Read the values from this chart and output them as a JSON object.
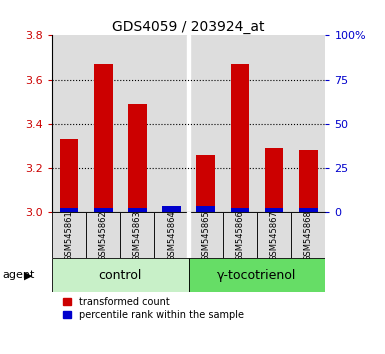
{
  "title": "GDS4059 / 203924_at",
  "samples": [
    "GSM545861",
    "GSM545862",
    "GSM545863",
    "GSM545864",
    "GSM545865",
    "GSM545866",
    "GSM545867",
    "GSM545868"
  ],
  "red_values": [
    3.33,
    3.67,
    3.49,
    3.0,
    3.26,
    3.67,
    3.29,
    3.28
  ],
  "blue_values": [
    0.022,
    0.022,
    0.022,
    0.028,
    0.028,
    0.022,
    0.022,
    0.022
  ],
  "ymin": 3.0,
  "ymax": 3.8,
  "yticks": [
    3.0,
    3.2,
    3.4,
    3.6,
    3.8
  ],
  "right_yticks": [
    0,
    25,
    50,
    75,
    100
  ],
  "right_ylabels": [
    "0",
    "25",
    "50",
    "75",
    "100%"
  ],
  "groups": [
    {
      "label": "control",
      "indices": [
        0,
        1,
        2,
        3
      ],
      "color": "#c8f0c8"
    },
    {
      "label": "γ-tocotrienol",
      "indices": [
        4,
        5,
        6,
        7
      ],
      "color": "#66dd66"
    }
  ],
  "group_row_label": "agent",
  "bar_color_red": "#cc0000",
  "bar_color_blue": "#0000cc",
  "bar_width": 0.55,
  "legend_red": "transformed count",
  "legend_blue": "percentile rank within the sample",
  "background_color": "#ffffff",
  "tick_bg_color": "#dddddd",
  "left_tick_color": "#cc0000",
  "right_tick_color": "#0000cc",
  "title_fontsize": 10,
  "sample_fontsize": 6,
  "group_fontsize": 9
}
